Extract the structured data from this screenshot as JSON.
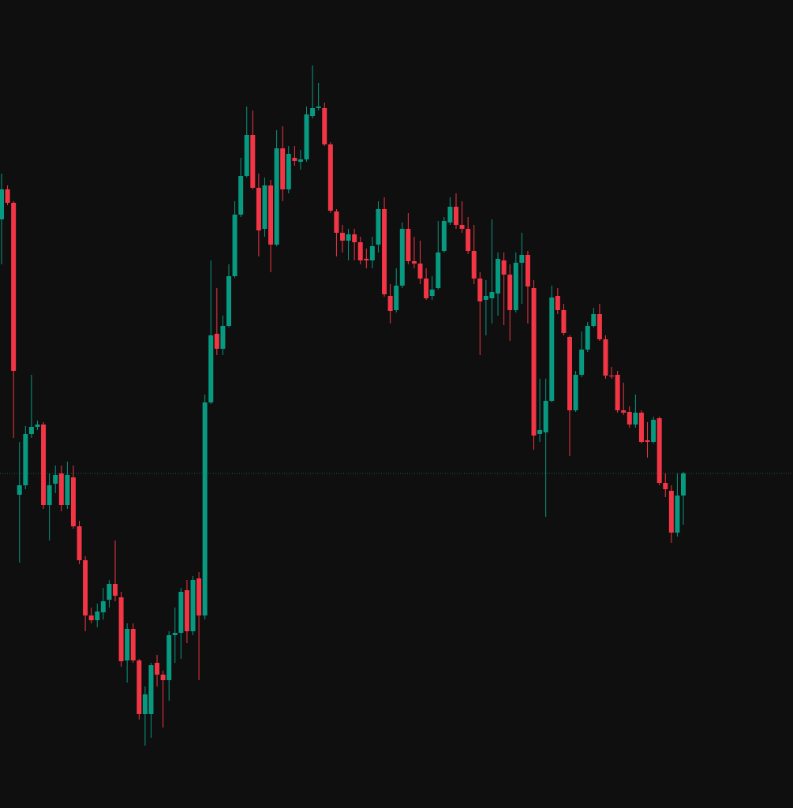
{
  "chart_data": {
    "type": "candlestick",
    "up_color": "#089981",
    "down_color": "#f23645",
    "ylim": [
      0,
      1024
    ],
    "open": [
      746,
      784,
      767,
      397,
      409,
      474,
      483,
      486,
      384,
      411,
      424,
      384,
      419,
      357,
      314,
      244,
      238,
      248,
      264,
      284,
      267,
      187,
      227,
      187,
      119,
      119,
      184,
      169,
      162,
      219,
      222,
      276,
      224,
      291,
      244,
      514,
      601,
      582,
      611,
      674,
      752,
      801,
      853,
      786,
      734,
      789,
      714,
      836,
      784,
      824,
      819,
      822,
      877,
      887,
      887,
      841,
      756,
      729,
      719,
      727,
      717,
      696,
      694,
      714,
      759,
      649,
      631,
      662,
      734,
      693,
      690,
      671,
      649,
      659,
      706,
      742,
      762,
      739,
      734,
      706,
      671,
      644,
      646,
      652,
      694,
      676,
      631,
      691,
      701,
      659,
      474,
      476,
      516,
      649,
      631,
      597,
      504,
      549,
      581,
      611,
      626,
      594,
      548,
      549,
      504,
      502,
      486,
      501,
      466,
      464,
      494,
      412,
      402,
      349,
      396
    ],
    "high": [
      804,
      789,
      769,
      464,
      484,
      549,
      491,
      489,
      424,
      434,
      434,
      439,
      434,
      364,
      319,
      254,
      259,
      279,
      289,
      339,
      274,
      234,
      234,
      189,
      154,
      184,
      194,
      174,
      224,
      254,
      279,
      289,
      294,
      299,
      524,
      694,
      659,
      624,
      689,
      769,
      824,
      889,
      884,
      804,
      799,
      796,
      859,
      864,
      839,
      839,
      834,
      889,
      941,
      919,
      894,
      844,
      759,
      739,
      734,
      734,
      724,
      709,
      724,
      769,
      774,
      664,
      684,
      742,
      754,
      724,
      719,
      684,
      674,
      744,
      749,
      774,
      779,
      769,
      749,
      739,
      679,
      669,
      746,
      704,
      704,
      689,
      704,
      729,
      706,
      669,
      544,
      544,
      662,
      659,
      639,
      599,
      554,
      604,
      616,
      634,
      639,
      599,
      559,
      554,
      539,
      509,
      524,
      504,
      489,
      496,
      496,
      424,
      409,
      424,
      426
    ],
    "low": [
      689,
      764,
      469,
      311,
      404,
      469,
      479,
      379,
      339,
      399,
      376,
      379,
      354,
      309,
      224,
      234,
      229,
      239,
      254,
      262,
      179,
      159,
      184,
      112,
      79,
      89,
      154,
      102,
      136,
      184,
      189,
      209,
      219,
      162,
      239,
      512,
      574,
      574,
      609,
      672,
      749,
      799,
      784,
      699,
      724,
      679,
      712,
      769,
      779,
      814,
      809,
      819,
      874,
      884,
      839,
      754,
      699,
      704,
      694,
      694,
      689,
      684,
      684,
      704,
      648,
      614,
      628,
      659,
      689,
      684,
      664,
      644,
      644,
      657,
      704,
      739,
      734,
      729,
      702,
      664,
      574,
      599,
      614,
      624,
      612,
      592,
      628,
      639,
      614,
      454,
      464,
      369,
      514,
      626,
      599,
      446,
      502,
      546,
      578,
      609,
      592,
      544,
      544,
      501,
      498,
      482,
      482,
      462,
      444,
      462,
      409,
      394,
      336,
      344,
      359
    ],
    "close": [
      784,
      767,
      554,
      409,
      474,
      483,
      486,
      384,
      409,
      422,
      384,
      422,
      357,
      314,
      244,
      238,
      249,
      262,
      284,
      269,
      186,
      227,
      187,
      119,
      144,
      181,
      169,
      162,
      219,
      222,
      274,
      224,
      289,
      244,
      514,
      599,
      582,
      611,
      674,
      752,
      801,
      853,
      786,
      732,
      789,
      714,
      836,
      784,
      829,
      820,
      822,
      879,
      887,
      889,
      841,
      757,
      729,
      719,
      727,
      717,
      694,
      694,
      712,
      759,
      651,
      630,
      662,
      734,
      693,
      690,
      671,
      646,
      657,
      704,
      744,
      762,
      739,
      734,
      706,
      671,
      642,
      649,
      654,
      696,
      676,
      631,
      691,
      701,
      661,
      472,
      479,
      516,
      647,
      631,
      602,
      504,
      549,
      581,
      611,
      626,
      594,
      548,
      547,
      504,
      501,
      486,
      501,
      464,
      464,
      492,
      412,
      404,
      349,
      396,
      424
    ]
  }
}
